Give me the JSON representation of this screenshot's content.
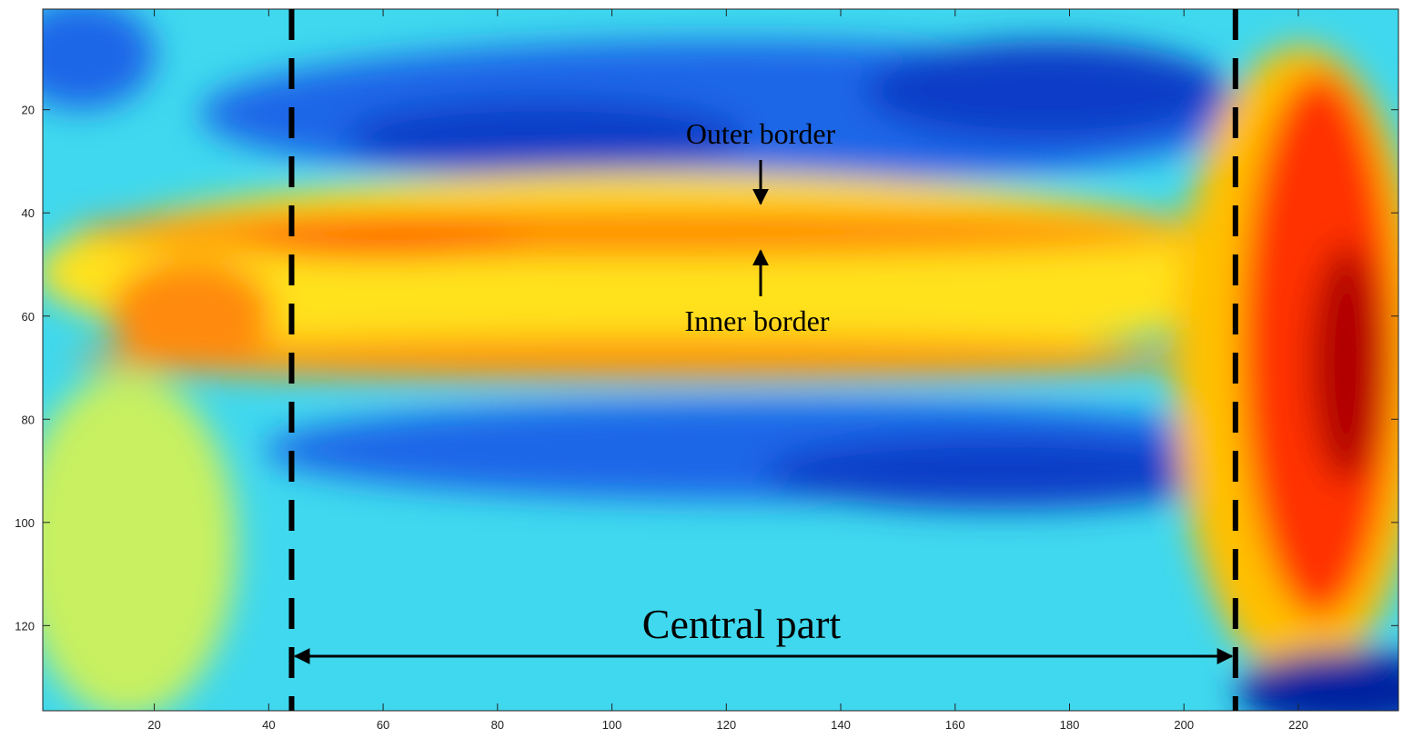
{
  "chart_data": {
    "type": "heatmap",
    "colormap": "jet",
    "xlim": [
      0.5,
      237.5
    ],
    "ylim": [
      0.5,
      136.5
    ],
    "y_reversed": true,
    "xticks": [
      20,
      40,
      60,
      80,
      100,
      120,
      140,
      160,
      180,
      200,
      220
    ],
    "yticks": [
      20,
      40,
      60,
      80,
      100,
      120
    ],
    "vlines": [
      44,
      209
    ],
    "annotations": [
      "Outer border",
      "Inner border",
      "Central part"
    ]
  }
}
